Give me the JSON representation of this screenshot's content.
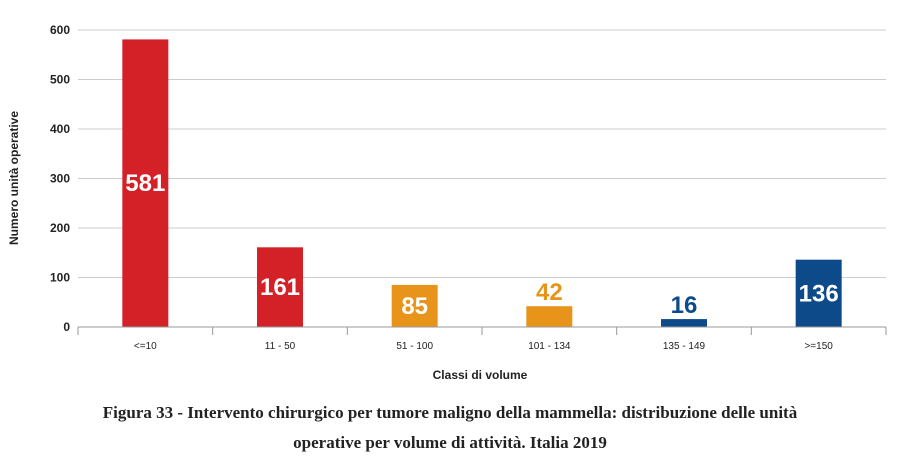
{
  "chart_data": {
    "type": "bar",
    "categories": [
      "<=10",
      "11 - 50",
      "51 - 100",
      "101 - 134",
      "135 - 149",
      ">=150"
    ],
    "values": [
      581,
      161,
      85,
      42,
      16,
      136
    ],
    "colors": [
      "#d42027",
      "#d42027",
      "#e8941a",
      "#e8941a",
      "#0d4a8a",
      "#0d4a8a"
    ],
    "label_colors": [
      "#ffffff",
      "#ffffff",
      "#ffffff",
      "#e8941a",
      "#0d4a8a",
      "#ffffff"
    ],
    "xlabel": "Classi di volume",
    "ylabel": "Numero unità operative",
    "ylim": [
      0,
      600
    ],
    "yticks": [
      0,
      100,
      200,
      300,
      400,
      500,
      600
    ],
    "grid": true
  },
  "caption": {
    "line1": "Figura 33 - Intervento chirurgico per tumore maligno della mammella: distribuzione delle unità",
    "line2": "operative per volume di attività. Italia 2019"
  }
}
